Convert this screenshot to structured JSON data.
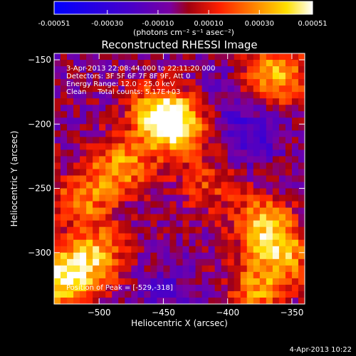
{
  "colorbar": {
    "tick_labels": [
      "-0.00051",
      "-0.00030",
      "-0.00010",
      "0.00010",
      "0.00030",
      "0.00051"
    ],
    "tick_values": [
      -0.00051,
      -0.0003,
      -0.0001,
      0.0001,
      0.0003,
      0.00051
    ],
    "range": [
      -0.00051,
      0.00051
    ],
    "units_label": "(photons cm⁻² s⁻¹ asec⁻²)"
  },
  "chart_data": {
    "type": "heatmap",
    "title": "Reconstructed RHESSI Image",
    "xlabel": "Heliocentric X (arcsec)",
    "ylabel": "Heliocentric Y (arcsec)",
    "xlim": [
      -535,
      -340
    ],
    "ylim": [
      -340,
      -145
    ],
    "x_ticks": [
      -500,
      -450,
      -400,
      -350
    ],
    "y_ticks": [
      -150,
      -200,
      -250,
      -300
    ],
    "x_tick_labels": [
      "−500",
      "−450",
      "−400",
      "−350"
    ],
    "y_tick_labels": [
      "−150",
      "−200",
      "−250",
      "−300"
    ],
    "value_range": [
      -0.00051,
      0.00051
    ],
    "peak_position": [
      -529,
      -318
    ],
    "bright_regions": [
      {
        "x": -455,
        "y": -190,
        "value": 0.00045
      },
      {
        "x": -440,
        "y": -200,
        "value": 0.0004
      },
      {
        "x": -485,
        "y": -230,
        "value": 0.00035
      },
      {
        "x": -515,
        "y": -255,
        "value": 0.0003
      },
      {
        "x": -505,
        "y": -300,
        "value": 0.00035
      },
      {
        "x": -529,
        "y": -318,
        "value": 0.00051
      },
      {
        "x": -365,
        "y": -160,
        "value": 0.0004
      },
      {
        "x": -375,
        "y": -275,
        "value": 0.00038
      },
      {
        "x": -360,
        "y": -300,
        "value": 0.00035
      },
      {
        "x": -380,
        "y": -330,
        "value": 0.0003
      },
      {
        "x": -420,
        "y": -245,
        "value": 0.0002
      }
    ],
    "dark_regions": [
      {
        "x": -385,
        "y": -205,
        "value": -0.0002
      },
      {
        "x": -450,
        "y": -330,
        "value": -0.00012
      },
      {
        "x": -410,
        "y": -175,
        "value": -8e-05
      }
    ],
    "annotations": [
      "3-Apr-2013 22:08:44.000 to 22:11:20.000",
      "Detectors: 3F 5F 6F 7F 8F 9F, Att 0",
      "Energy Range: 12.0 - 25.0 keV",
      "Clean     Total counts: 5.17E+03",
      "Position of Peak = [-529,-318]"
    ],
    "timestamp": "4-Apr-2013 10:22"
  }
}
